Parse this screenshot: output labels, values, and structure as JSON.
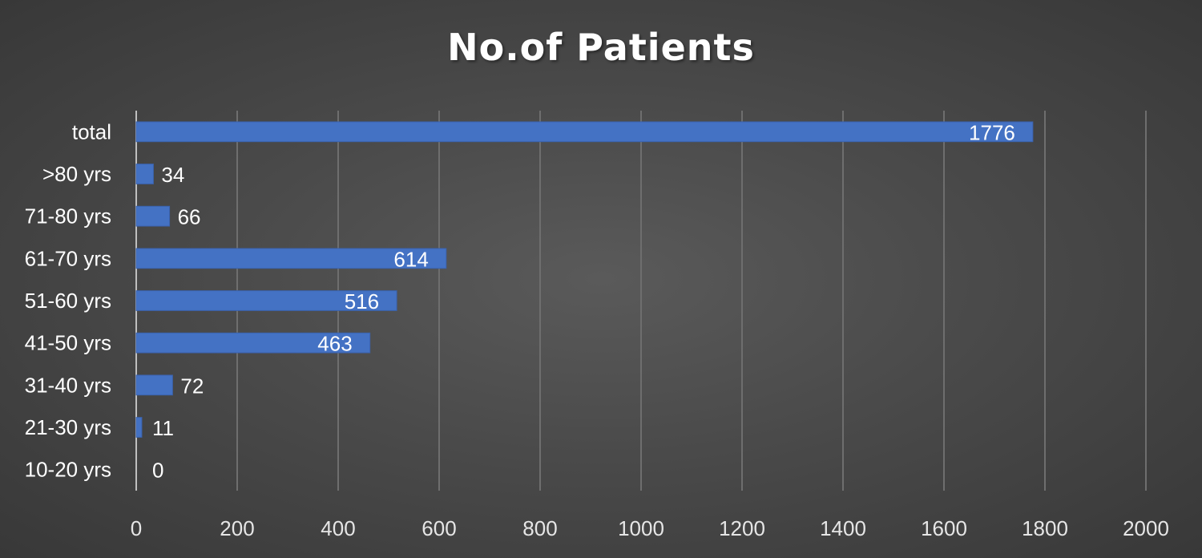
{
  "chart_data": {
    "type": "bar",
    "orientation": "horizontal",
    "title": "No.of Patients",
    "xlabel": "",
    "ylabel": "",
    "categories": [
      "10-20 yrs",
      "21-30 yrs",
      "31-40 yrs",
      "41-50 yrs",
      "51-60 yrs",
      "61-70 yrs",
      "71-80 yrs",
      ">80 yrs",
      "total"
    ],
    "values": [
      0,
      11,
      72,
      463,
      516,
      614,
      66,
      34,
      1776
    ],
    "data_labels": [
      "0",
      "11",
      "72",
      "463",
      "516",
      "614",
      "66",
      "34",
      "1776"
    ],
    "xlim": [
      0,
      2000
    ],
    "xticks": [
      0,
      200,
      400,
      600,
      800,
      1000,
      1200,
      1400,
      1600,
      1800,
      2000
    ],
    "grid": "vertical",
    "legend": "none",
    "colors": {
      "bar": "#4472c4",
      "text": "#ffffff",
      "tick_text": "#e6e6e6",
      "grid": "#6e6e6e",
      "axis": "#bfbfbf"
    }
  }
}
